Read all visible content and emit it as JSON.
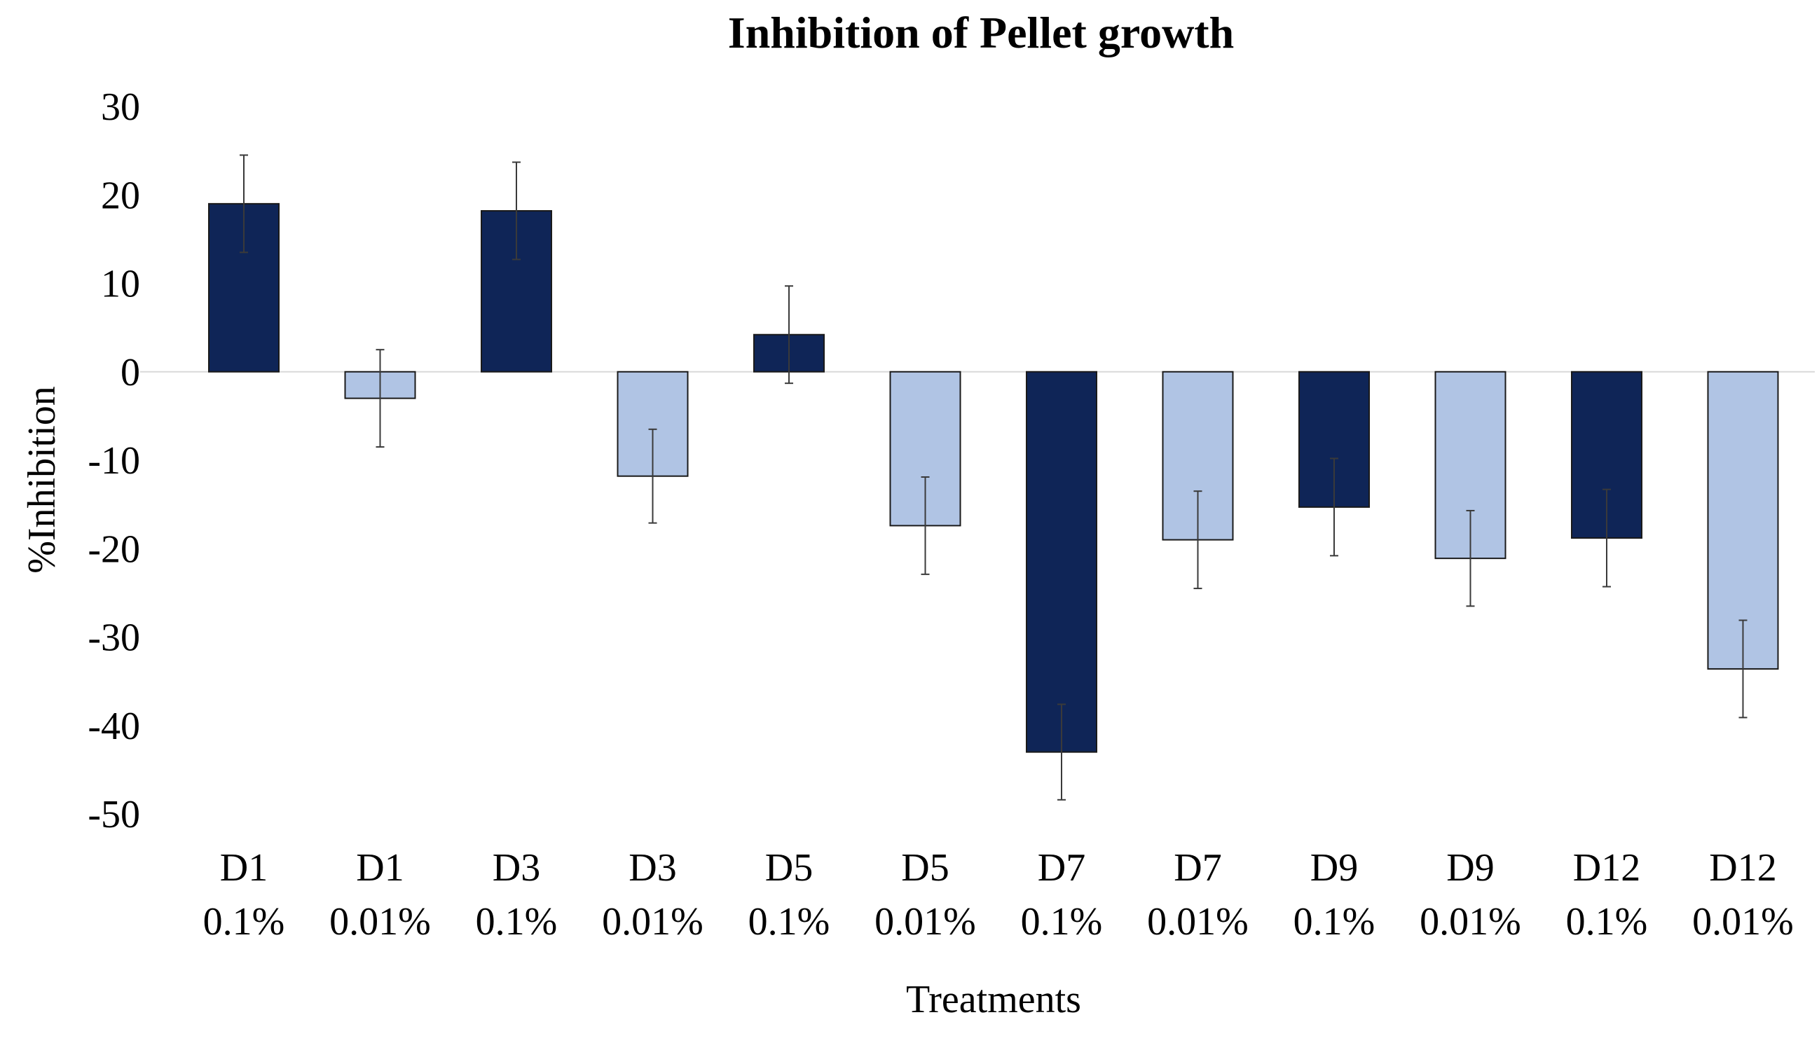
{
  "chart_data": {
    "type": "bar",
    "title": "Inhibition of Pellet growth",
    "xlabel": "Treatments",
    "ylabel": "%Inhibition",
    "ylim": [
      -50,
      30
    ],
    "yticks": [
      30,
      20,
      10,
      0,
      -10,
      -20,
      -30,
      -40,
      -50
    ],
    "grid": false,
    "legend": "none",
    "categories": [
      {
        "line1": "D1",
        "line2": "0.1%"
      },
      {
        "line1": "D1",
        "line2": "0.01%"
      },
      {
        "line1": "D3",
        "line2": "0.1%"
      },
      {
        "line1": "D3",
        "line2": "0.01%"
      },
      {
        "line1": "D5",
        "line2": "0.1%"
      },
      {
        "line1": "D5",
        "line2": "0.01%"
      },
      {
        "line1": "D7",
        "line2": "0.1%"
      },
      {
        "line1": "D7",
        "line2": "0.01%"
      },
      {
        "line1": "D9",
        "line2": "0.1%"
      },
      {
        "line1": "D9",
        "line2": "0.01%"
      },
      {
        "line1": "D12",
        "line2": "0.1%"
      },
      {
        "line1": "D12",
        "line2": "0.01%"
      }
    ],
    "values": [
      19,
      -3,
      18.2,
      -11.8,
      4.2,
      -17.4,
      -43,
      -19,
      -15.3,
      -21.1,
      -18.8,
      -33.6
    ],
    "errors": [
      5.5,
      5.5,
      5.5,
      5.3,
      5.5,
      5.5,
      5.4,
      5.5,
      5.5,
      5.4,
      5.5,
      5.5
    ],
    "colors": {
      "concentration_0.1": "#0f2557",
      "concentration_0.01": "#b0c4e4",
      "bar_border": "#1a1a1a",
      "error_bar": "#3a3a3a",
      "zero_line": "#d9d9d9"
    }
  }
}
